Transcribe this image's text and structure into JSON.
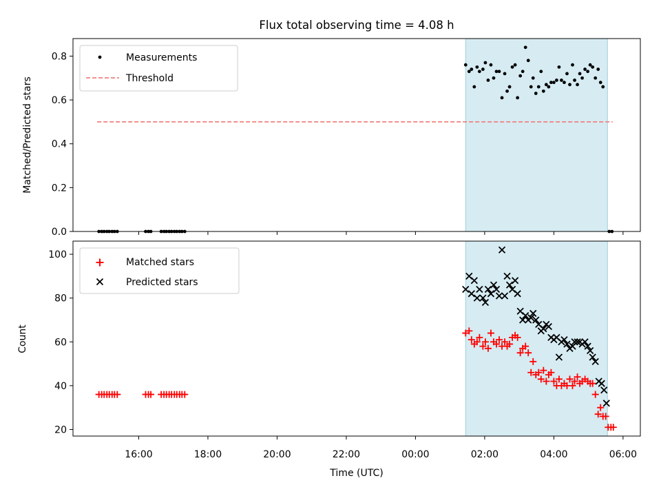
{
  "chart_data": {
    "type": "scatter",
    "title": "Flux total observing time = 4.08 h",
    "colors": {
      "measurement": "#000000",
      "threshold": "#f08080",
      "matched": "#ff0000",
      "predicted": "#000000",
      "shade": "#add8e6"
    },
    "time_axis": {
      "label": "Time (UTC)",
      "ticks": [
        {
          "h": 16,
          "label": "16:00"
        },
        {
          "h": 18,
          "label": "18:00"
        },
        {
          "h": 20,
          "label": "20:00"
        },
        {
          "h": 22,
          "label": "22:00"
        },
        {
          "h": 24,
          "label": "00:00"
        },
        {
          "h": 26,
          "label": "02:00"
        },
        {
          "h": 28,
          "label": "04:00"
        },
        {
          "h": 30,
          "label": "06:00"
        }
      ],
      "range": [
        14.1,
        30.5
      ]
    },
    "shaded_interval": [
      25.45,
      29.55
    ],
    "top": {
      "ylabel": "Matched/Predicted stars",
      "ylim": [
        0,
        0.88
      ],
      "yticks": [
        {
          "v": 0.0,
          "label": "0.0"
        },
        {
          "v": 0.2,
          "label": "0.2"
        },
        {
          "v": 0.4,
          "label": "0.4"
        },
        {
          "v": 0.6,
          "label": "0.6"
        },
        {
          "v": 0.8,
          "label": "0.8"
        }
      ],
      "legend": {
        "position": "upper-left",
        "measurements": "Measurements",
        "threshold": "Threshold"
      },
      "threshold": {
        "value": 0.5,
        "x_range": [
          14.8,
          29.7
        ]
      },
      "measurements": [
        [
          14.85,
          0
        ],
        [
          14.93,
          0
        ],
        [
          15.0,
          0
        ],
        [
          15.08,
          0
        ],
        [
          15.15,
          0
        ],
        [
          15.23,
          0
        ],
        [
          15.3,
          0
        ],
        [
          15.38,
          0
        ],
        [
          16.2,
          0
        ],
        [
          16.28,
          0
        ],
        [
          16.35,
          0
        ],
        [
          16.65,
          0
        ],
        [
          16.73,
          0
        ],
        [
          16.8,
          0
        ],
        [
          16.88,
          0
        ],
        [
          16.95,
          0
        ],
        [
          17.03,
          0
        ],
        [
          17.1,
          0
        ],
        [
          17.18,
          0
        ],
        [
          17.25,
          0
        ],
        [
          17.33,
          0
        ],
        [
          29.6,
          0
        ],
        [
          29.68,
          0
        ],
        [
          25.45,
          0.76
        ],
        [
          25.55,
          0.73
        ],
        [
          25.62,
          0.74
        ],
        [
          25.7,
          0.66
        ],
        [
          25.78,
          0.75
        ],
        [
          25.85,
          0.73
        ],
        [
          25.95,
          0.74
        ],
        [
          26.02,
          0.77
        ],
        [
          26.1,
          0.69
        ],
        [
          26.18,
          0.76
        ],
        [
          26.26,
          0.7
        ],
        [
          26.34,
          0.73
        ],
        [
          26.42,
          0.73
        ],
        [
          26.5,
          0.61
        ],
        [
          26.58,
          0.72
        ],
        [
          26.65,
          0.64
        ],
        [
          26.72,
          0.66
        ],
        [
          26.8,
          0.75
        ],
        [
          26.88,
          0.76
        ],
        [
          26.95,
          0.61
        ],
        [
          27.03,
          0.71
        ],
        [
          27.1,
          0.73
        ],
        [
          27.18,
          0.84
        ],
        [
          27.26,
          0.78
        ],
        [
          27.34,
          0.66
        ],
        [
          27.4,
          0.7
        ],
        [
          27.48,
          0.63
        ],
        [
          27.56,
          0.66
        ],
        [
          27.63,
          0.73
        ],
        [
          27.7,
          0.64
        ],
        [
          27.78,
          0.67
        ],
        [
          27.85,
          0.66
        ],
        [
          27.92,
          0.68
        ],
        [
          28.0,
          0.68
        ],
        [
          28.08,
          0.69
        ],
        [
          28.15,
          0.75
        ],
        [
          28.22,
          0.69
        ],
        [
          28.3,
          0.68
        ],
        [
          28.38,
          0.72
        ],
        [
          28.46,
          0.67
        ],
        [
          28.54,
          0.76
        ],
        [
          28.6,
          0.69
        ],
        [
          28.68,
          0.67
        ],
        [
          28.75,
          0.72
        ],
        [
          28.82,
          0.7
        ],
        [
          28.9,
          0.74
        ],
        [
          28.98,
          0.73
        ],
        [
          29.05,
          0.76
        ],
        [
          29.12,
          0.75
        ],
        [
          29.2,
          0.7
        ],
        [
          29.28,
          0.74
        ],
        [
          29.35,
          0.68
        ],
        [
          29.42,
          0.66
        ]
      ]
    },
    "bottom": {
      "ylabel": "Count",
      "ylim": [
        17,
        106
      ],
      "yticks": [
        {
          "v": 20,
          "label": "20"
        },
        {
          "v": 40,
          "label": "40"
        },
        {
          "v": 60,
          "label": "60"
        },
        {
          "v": 80,
          "label": "80"
        },
        {
          "v": 100,
          "label": "100"
        }
      ],
      "legend": {
        "position": "upper-left",
        "matched": "Matched stars",
        "predicted": "Predicted stars"
      },
      "matched": [
        [
          14.85,
          36
        ],
        [
          14.93,
          36
        ],
        [
          15.0,
          36
        ],
        [
          15.08,
          36
        ],
        [
          15.15,
          36
        ],
        [
          15.23,
          36
        ],
        [
          15.3,
          36
        ],
        [
          15.38,
          36
        ],
        [
          16.2,
          36
        ],
        [
          16.28,
          36
        ],
        [
          16.35,
          36
        ],
        [
          16.65,
          36
        ],
        [
          16.73,
          36
        ],
        [
          16.8,
          36
        ],
        [
          16.88,
          36
        ],
        [
          16.95,
          36
        ],
        [
          17.03,
          36
        ],
        [
          17.1,
          36
        ],
        [
          17.18,
          36
        ],
        [
          17.25,
          36
        ],
        [
          17.33,
          36
        ],
        [
          25.45,
          64
        ],
        [
          25.55,
          65
        ],
        [
          25.62,
          61
        ],
        [
          25.7,
          59
        ],
        [
          25.78,
          60
        ],
        [
          25.85,
          62
        ],
        [
          25.95,
          58
        ],
        [
          26.02,
          60
        ],
        [
          26.1,
          57
        ],
        [
          26.18,
          64
        ],
        [
          26.26,
          60
        ],
        [
          26.34,
          59
        ],
        [
          26.42,
          61
        ],
        [
          26.5,
          58
        ],
        [
          26.58,
          60
        ],
        [
          26.65,
          58
        ],
        [
          26.72,
          59
        ],
        [
          26.8,
          62
        ],
        [
          26.88,
          63
        ],
        [
          26.95,
          62
        ],
        [
          27.03,
          55
        ],
        [
          27.1,
          57
        ],
        [
          27.18,
          58
        ],
        [
          27.26,
          55
        ],
        [
          27.34,
          46
        ],
        [
          27.4,
          51
        ],
        [
          27.48,
          45
        ],
        [
          27.56,
          46
        ],
        [
          27.63,
          43
        ],
        [
          27.7,
          47
        ],
        [
          27.78,
          42
        ],
        [
          27.85,
          45
        ],
        [
          27.92,
          46
        ],
        [
          28.0,
          42
        ],
        [
          28.08,
          40
        ],
        [
          28.15,
          43
        ],
        [
          28.22,
          40
        ],
        [
          28.3,
          41
        ],
        [
          28.38,
          40
        ],
        [
          28.46,
          43
        ],
        [
          28.54,
          40
        ],
        [
          28.6,
          42
        ],
        [
          28.68,
          44
        ],
        [
          28.75,
          41
        ],
        [
          28.82,
          42
        ],
        [
          28.9,
          43
        ],
        [
          28.98,
          42
        ],
        [
          29.05,
          41
        ],
        [
          29.12,
          41
        ],
        [
          29.2,
          36
        ],
        [
          29.28,
          27
        ],
        [
          29.35,
          30
        ],
        [
          29.42,
          26
        ],
        [
          29.5,
          26
        ],
        [
          29.57,
          21
        ],
        [
          29.65,
          21
        ],
        [
          29.72,
          21
        ]
      ],
      "predicted": [
        [
          25.45,
          84
        ],
        [
          25.55,
          90
        ],
        [
          25.62,
          82
        ],
        [
          25.7,
          88
        ],
        [
          25.78,
          80
        ],
        [
          25.85,
          84
        ],
        [
          25.95,
          80
        ],
        [
          26.02,
          78
        ],
        [
          26.1,
          84
        ],
        [
          26.18,
          82
        ],
        [
          26.26,
          86
        ],
        [
          26.34,
          84
        ],
        [
          26.42,
          81
        ],
        [
          26.5,
          102
        ],
        [
          26.58,
          81
        ],
        [
          26.65,
          90
        ],
        [
          26.72,
          86
        ],
        [
          26.8,
          84
        ],
        [
          26.88,
          88
        ],
        [
          26.95,
          82
        ],
        [
          27.03,
          74
        ],
        [
          27.1,
          70
        ],
        [
          27.18,
          72
        ],
        [
          27.26,
          70
        ],
        [
          27.34,
          71
        ],
        [
          27.4,
          73
        ],
        [
          27.48,
          70
        ],
        [
          27.56,
          68
        ],
        [
          27.63,
          65
        ],
        [
          27.7,
          66
        ],
        [
          27.78,
          68
        ],
        [
          27.85,
          67
        ],
        [
          27.92,
          62
        ],
        [
          28.0,
          61
        ],
        [
          28.08,
          62
        ],
        [
          28.15,
          53
        ],
        [
          28.22,
          60
        ],
        [
          28.3,
          61
        ],
        [
          28.38,
          59
        ],
        [
          28.46,
          57
        ],
        [
          28.54,
          58
        ],
        [
          28.6,
          60
        ],
        [
          28.68,
          60
        ],
        [
          28.75,
          60
        ],
        [
          28.82,
          59
        ],
        [
          28.9,
          60
        ],
        [
          28.98,
          58
        ],
        [
          29.05,
          56
        ],
        [
          29.12,
          53
        ],
        [
          29.2,
          51
        ],
        [
          29.3,
          42
        ],
        [
          29.38,
          41
        ],
        [
          29.45,
          38
        ],
        [
          29.52,
          32
        ]
      ]
    }
  }
}
